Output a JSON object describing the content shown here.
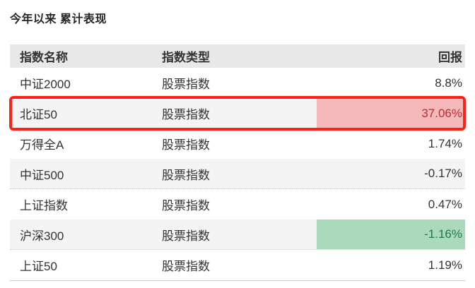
{
  "title": "今年以来 累计表现",
  "table": {
    "headers": [
      "指数名称",
      "指数类型",
      "回报"
    ],
    "rows": [
      {
        "name": "中证2000",
        "type": "股票指数",
        "return": "8.8%",
        "highlight": "none"
      },
      {
        "name": "北证50",
        "type": "股票指数",
        "return": "37.06%",
        "highlight": "red",
        "annotated": true
      },
      {
        "name": "万得全A",
        "type": "股票指数",
        "return": "1.74%",
        "highlight": "none"
      },
      {
        "name": "中证500",
        "type": "股票指数",
        "return": "-0.17%",
        "highlight": "none"
      },
      {
        "name": "上证指数",
        "type": "股票指数",
        "return": "0.47%",
        "highlight": "none"
      },
      {
        "name": "沪深300",
        "type": "股票指数",
        "return": "-1.16%",
        "highlight": "green"
      },
      {
        "name": "上证50",
        "type": "股票指数",
        "return": "1.19%",
        "highlight": "none"
      }
    ]
  },
  "colors": {
    "annotation_red": "#fb2318",
    "highlight_red_bg": "#f5b9bb",
    "highlight_red_text": "#c2292f",
    "highlight_green_bg": "#aad9bb",
    "highlight_green_text": "#20794a",
    "header_bg": "#e8e8e8",
    "stripe_bg": "#f4f4f4",
    "text": "#333333"
  }
}
